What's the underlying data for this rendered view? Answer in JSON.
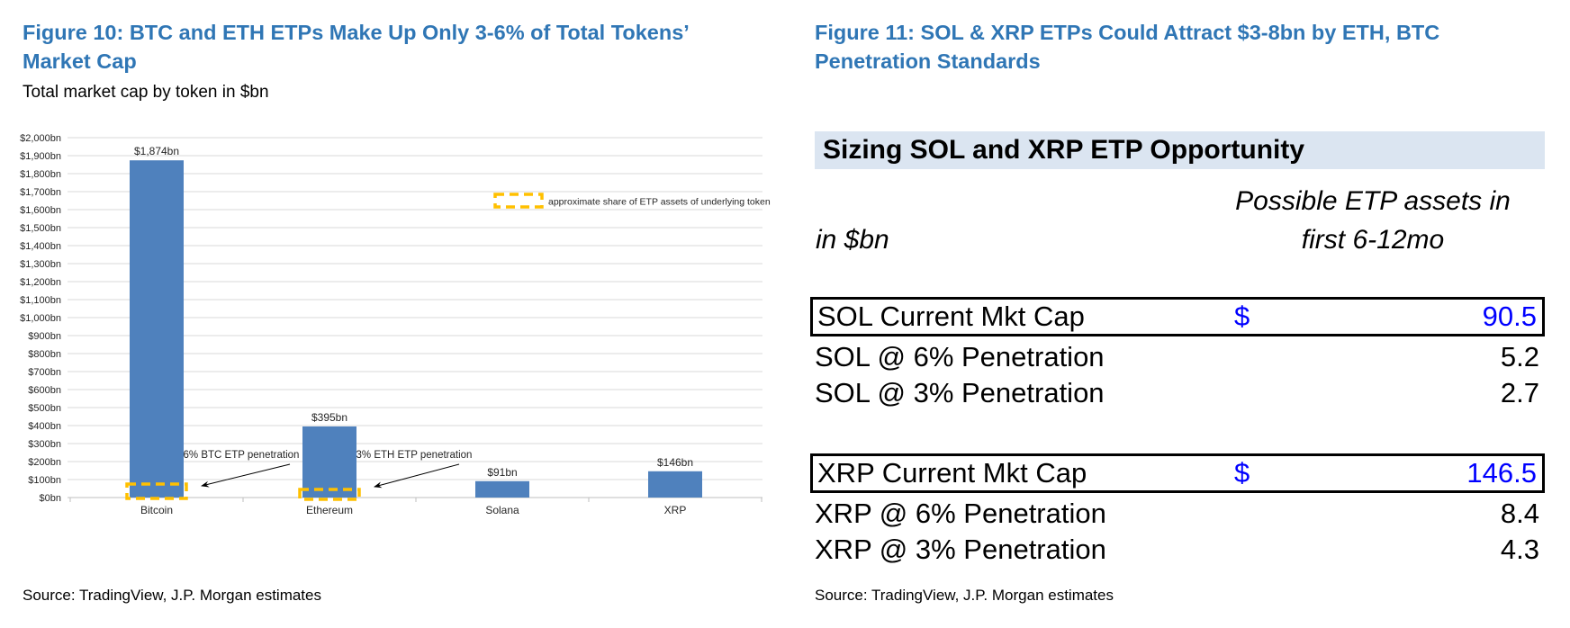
{
  "colors": {
    "title_blue": "#2f76b5",
    "bar_blue": "#4f81bd",
    "highlight_gold": "#ffc000",
    "band_bg": "#dbe5f1",
    "value_blue": "#0000ff",
    "gridline": "#d9d9d9",
    "axis_line": "#bfbfbf",
    "chart_text": "#262626"
  },
  "figure10": {
    "title": "Figure 10: BTC and ETH ETPs Make Up Only 3-6% of Total Tokens’ Market Cap",
    "subtitle": "Total market cap by token in $bn",
    "source": "Source: TradingView, J.P. Morgan estimates"
  },
  "chart_data": {
    "type": "bar",
    "title": "Total market cap by token in $bn",
    "categories": [
      "Bitcoin",
      "Ethereum",
      "Solana",
      "XRP"
    ],
    "values": [
      1874,
      395,
      91,
      146
    ],
    "value_labels": [
      "$1,874bn",
      "$395bn",
      "$91bn",
      "$146bn"
    ],
    "ylabel": "",
    "xlabel": "",
    "ylim": [
      0,
      2000
    ],
    "ytick_step": 100,
    "ytick_prefix": "$",
    "ytick_suffix": "bn",
    "grid": true,
    "legend_label": "approximate share of ETP assets of underlying token",
    "annotations": [
      {
        "text": "6% BTC ETP penetration",
        "category": "Bitcoin"
      },
      {
        "text": "3% ETH ETP penetration",
        "category": "Ethereum"
      }
    ],
    "etp_share_boxes": [
      "Bitcoin",
      "Ethereum"
    ]
  },
  "figure11": {
    "title": "Figure 11: SOL & XRP ETPs Could Attract $3-8bn by ETH, BTC Penetration Standards",
    "table_title": "Sizing SOL and XRP ETP Opportunity",
    "col_header_left": "in $bn",
    "col_header_right_line1": "Possible ETP assets in",
    "col_header_right_line2": "first 6-12mo",
    "rows": [
      {
        "label": "SOL Current Mkt Cap",
        "currency": "$",
        "value": "90.5"
      },
      {
        "label": "SOL @ 6% Penetration",
        "value": "5.2"
      },
      {
        "label": "SOL @ 3% Penetration",
        "value": "2.7"
      },
      {
        "label": "XRP Current Mkt Cap",
        "currency": "$",
        "value": "146.5"
      },
      {
        "label": "XRP @ 6% Penetration",
        "value": "8.4"
      },
      {
        "label": "XRP @ 3% Penetration",
        "value": "4.3"
      }
    ],
    "source": "Source: TradingView, J.P. Morgan estimates"
  }
}
